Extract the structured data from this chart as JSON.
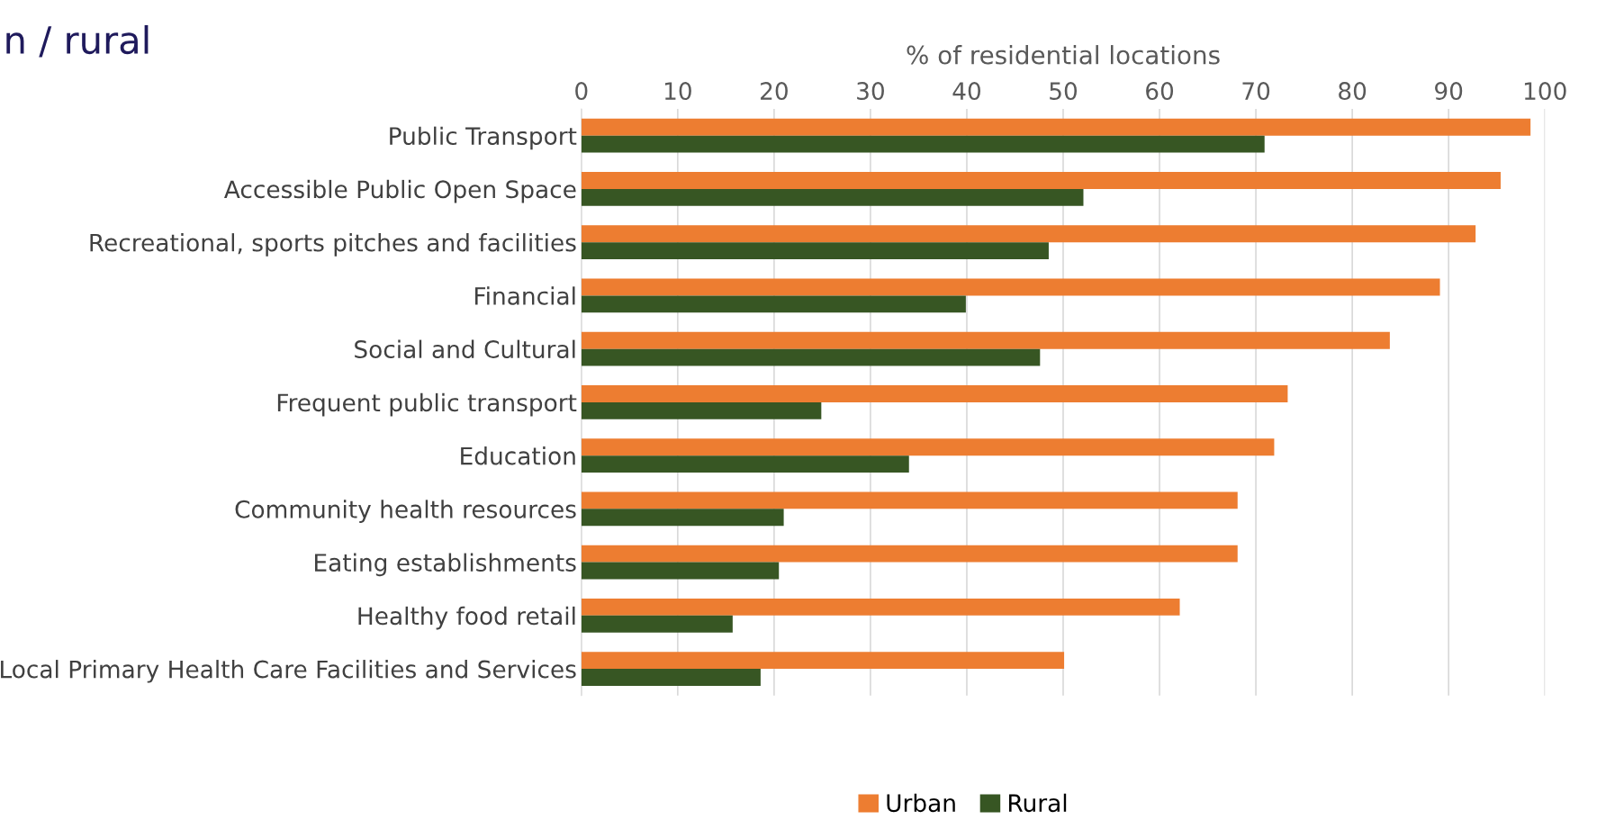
{
  "chart_data": {
    "type": "bar",
    "orientation": "horizontal",
    "title": "n / rural",
    "xlabel": "% of residential locations",
    "categories": [
      "Public Transport",
      "Accessible Public Open Space",
      "Recreational, sports pitches and facilities",
      "Financial",
      "Social and Cultural",
      "Frequent public transport",
      "Education",
      "Community health resources",
      "Eating establishments",
      "Healthy food retail",
      "Local Primary Health Care Facilities and Services"
    ],
    "series": [
      {
        "name": "Urban",
        "color": "#ed7d31",
        "values": [
          98.5,
          95.4,
          92.8,
          89.1,
          83.9,
          73.3,
          71.9,
          68.1,
          68.1,
          62.1,
          50.1
        ]
      },
      {
        "name": "Rural",
        "color": "#375623",
        "values": [
          70.9,
          52.1,
          48.5,
          39.9,
          47.6,
          24.9,
          34.0,
          21.0,
          20.5,
          15.7,
          18.6
        ]
      }
    ],
    "xlim": [
      0,
      100
    ],
    "xticks": [
      0,
      10,
      20,
      30,
      40,
      50,
      60,
      70,
      80,
      90,
      100
    ],
    "grid": "x",
    "legend": "bottom"
  }
}
